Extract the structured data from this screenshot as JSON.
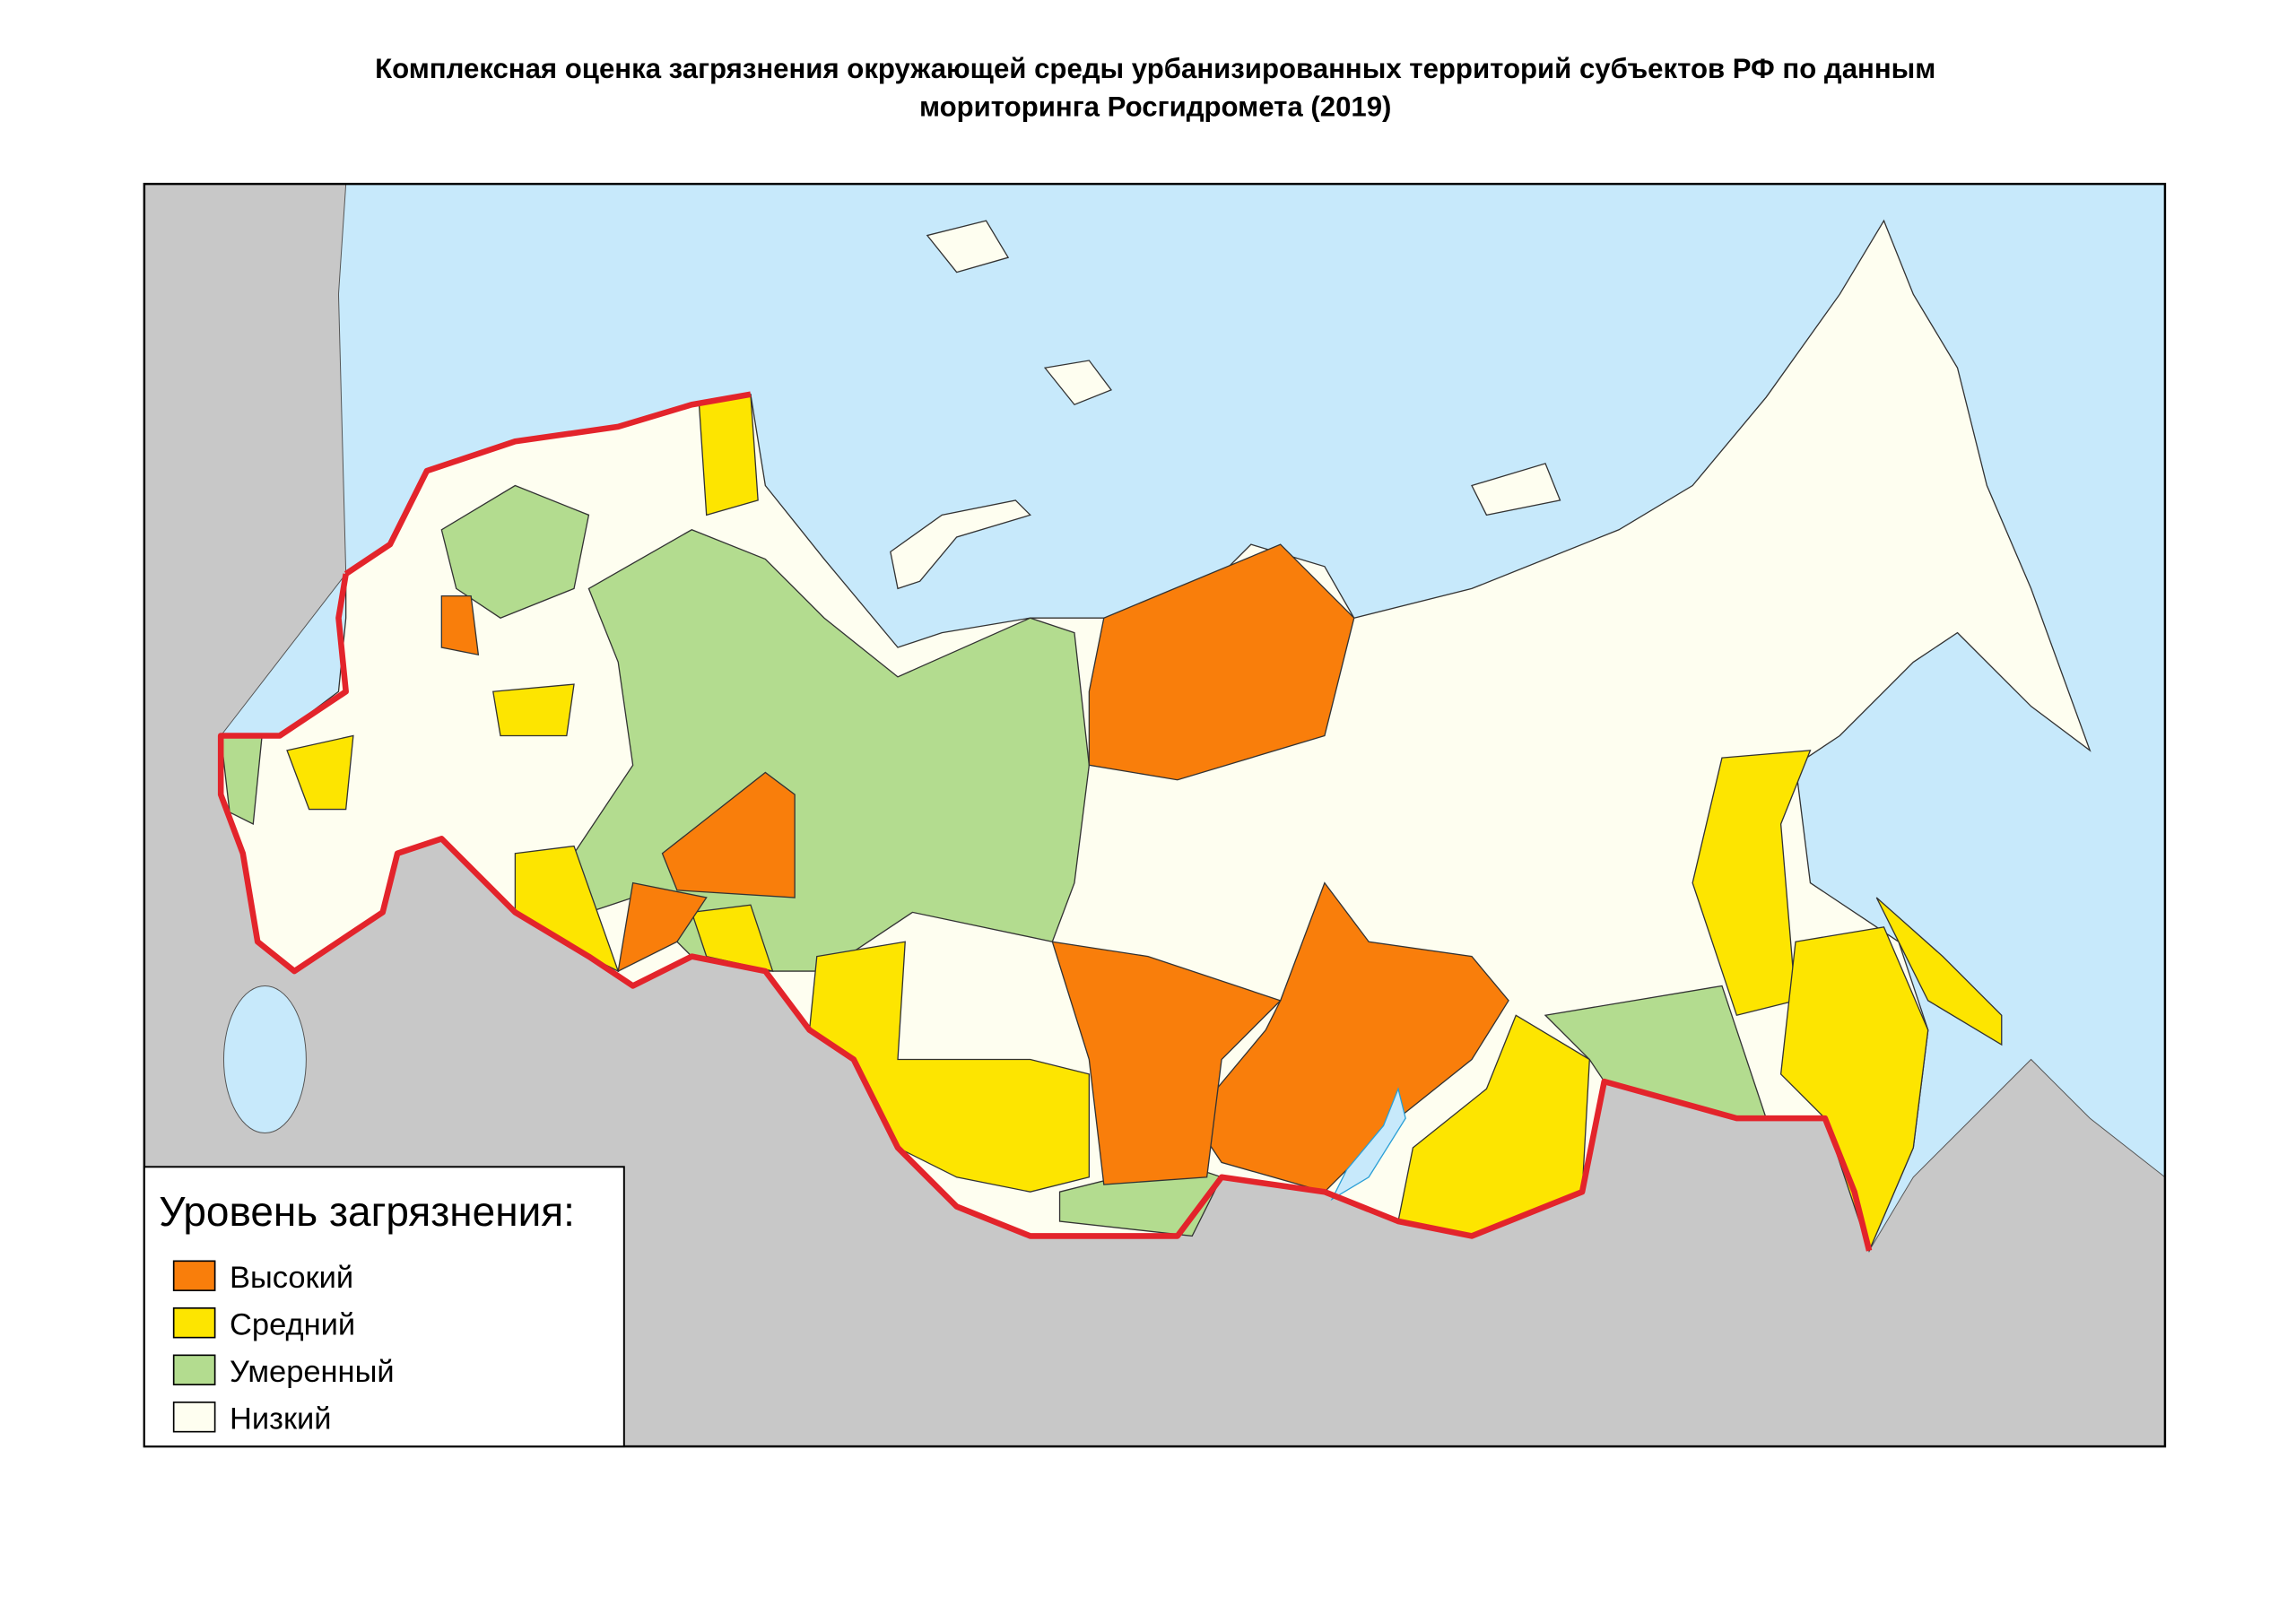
{
  "title": [
    "Комплексная оценка загрязнения окружающей среды урбанизированных территорий субъектов РФ по данным",
    "мориторинга Росгидромета (2019)"
  ],
  "legend": {
    "title": "Уровень загрязнения:",
    "items": [
      {
        "label": "Высокий",
        "color": "#f97e0b"
      },
      {
        "label": "Средний",
        "color": "#fde500"
      },
      {
        "label": "Умеренный",
        "color": "#b3dc8f"
      },
      {
        "label": "Низкий",
        "color": "#fefef0"
      }
    ]
  }
}
